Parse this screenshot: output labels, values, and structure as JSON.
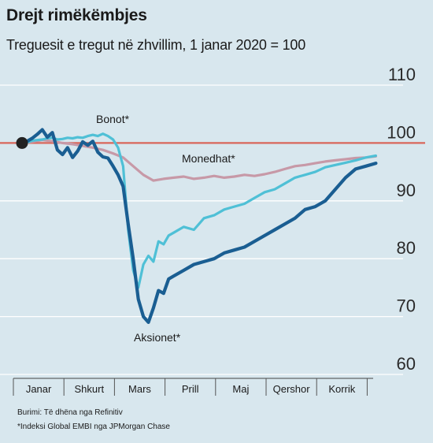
{
  "title": "Drejt rimëkëmbjes",
  "subtitle": "Treguesit e tregut në zhvillim, 1 janar 2020 = 100",
  "source": {
    "line1": "Burimi: Të dhëna nga Refinitiv",
    "line2": "*Indeksi Global EMBI nga JPMorgan Chase"
  },
  "colors": {
    "background": "#d8e7ee",
    "gridline": "#ffffff",
    "reference_line": "#d9665a",
    "bonot": "#4fc0d6",
    "aksionet": "#1a5e92",
    "monedhat": "#c799a7",
    "start_dot": "#222222"
  },
  "chart_data": {
    "type": "line",
    "title": "Drejt rimëkëmbjes",
    "subtitle": "Treguesit e tregut në zhvillim, 1 janar 2020 = 100",
    "xlabel": "",
    "ylabel": "",
    "ylim": [
      60,
      110
    ],
    "yticks": [
      60,
      70,
      80,
      90,
      100,
      110
    ],
    "categories": [
      "Janar",
      "Shkurt",
      "Mars",
      "Prill",
      "Maj",
      "Qershor",
      "Korrik"
    ],
    "reference_value": 100,
    "grid": true,
    "series": [
      {
        "name": "Bonot*",
        "x": [
          0,
          0.1,
          0.2,
          0.3,
          0.4,
          0.5,
          0.6,
          0.7,
          0.8,
          0.9,
          1.0,
          1.1,
          1.2,
          1.3,
          1.4,
          1.5,
          1.6,
          1.7,
          1.8,
          1.9,
          2.0,
          2.1,
          2.2,
          2.3,
          2.4,
          2.5,
          2.6,
          2.7,
          2.8,
          2.9,
          3.0,
          3.2,
          3.4,
          3.6,
          3.8,
          4.0,
          4.2,
          4.4,
          4.6,
          4.8,
          5.0,
          5.2,
          5.4,
          5.6,
          5.8,
          6.0,
          6.2,
          6.4,
          6.6,
          6.8,
          7.0
        ],
        "values": [
          100,
          100.1,
          100.4,
          100.5,
          100.6,
          100.8,
          100.9,
          100.6,
          100.7,
          100.9,
          100.8,
          101.0,
          100.9,
          101.2,
          101.4,
          101.2,
          101.6,
          101.2,
          100.6,
          99.2,
          96.0,
          85.0,
          78.0,
          75.0,
          79.0,
          80.5,
          79.5,
          83.0,
          82.5,
          84.0,
          84.5,
          85.5,
          85.0,
          87.0,
          87.5,
          88.5,
          89.0,
          89.5,
          90.5,
          91.5,
          92.0,
          93.0,
          94.0,
          94.5,
          95.0,
          95.8,
          96.2,
          96.6,
          97.0,
          97.5,
          97.8
        ]
      },
      {
        "name": "Aksionet*",
        "x": [
          0,
          0.1,
          0.2,
          0.3,
          0.4,
          0.5,
          0.6,
          0.7,
          0.8,
          0.9,
          1.0,
          1.1,
          1.2,
          1.3,
          1.4,
          1.5,
          1.6,
          1.7,
          1.8,
          1.9,
          2.0,
          2.1,
          2.2,
          2.3,
          2.4,
          2.5,
          2.6,
          2.7,
          2.8,
          2.9,
          3.0,
          3.2,
          3.4,
          3.6,
          3.8,
          4.0,
          4.2,
          4.4,
          4.6,
          4.8,
          5.0,
          5.2,
          5.4,
          5.6,
          5.8,
          6.0,
          6.2,
          6.4,
          6.6,
          6.8,
          7.0
        ],
        "values": [
          100,
          100.3,
          100.8,
          101.5,
          102.3,
          101.0,
          101.8,
          98.8,
          98.0,
          99.2,
          97.5,
          98.6,
          100.2,
          99.6,
          100.3,
          98.4,
          97.6,
          97.4,
          96.0,
          94.5,
          92.5,
          86.0,
          80.0,
          73.0,
          70.0,
          69.0,
          71.5,
          74.5,
          74.0,
          76.5,
          77.0,
          78.0,
          79.0,
          79.5,
          80.0,
          81.0,
          81.5,
          82.0,
          83.0,
          84.0,
          85.0,
          86.0,
          87.0,
          88.5,
          89.0,
          90.0,
          92.0,
          94.0,
          95.5,
          96.0,
          96.5
        ]
      },
      {
        "name": "Monedhat*",
        "x": [
          0,
          0.2,
          0.4,
          0.6,
          0.8,
          1.0,
          1.2,
          1.4,
          1.6,
          1.8,
          2.0,
          2.2,
          2.4,
          2.6,
          2.8,
          3.0,
          3.2,
          3.4,
          3.6,
          3.8,
          4.0,
          4.2,
          4.4,
          4.6,
          4.8,
          5.0,
          5.2,
          5.4,
          5.6,
          5.8,
          6.0,
          6.2,
          6.4,
          6.6,
          6.8,
          7.0
        ],
        "values": [
          100,
          100.2,
          100.5,
          100.3,
          100.0,
          99.8,
          99.5,
          99.2,
          98.8,
          98.2,
          97.5,
          96.0,
          94.5,
          93.5,
          93.8,
          94.0,
          94.2,
          93.8,
          94.0,
          94.3,
          94.0,
          94.2,
          94.5,
          94.3,
          94.6,
          95.0,
          95.5,
          96.0,
          96.2,
          96.5,
          96.8,
          97.0,
          97.2,
          97.4,
          97.5,
          97.7
        ]
      }
    ]
  }
}
